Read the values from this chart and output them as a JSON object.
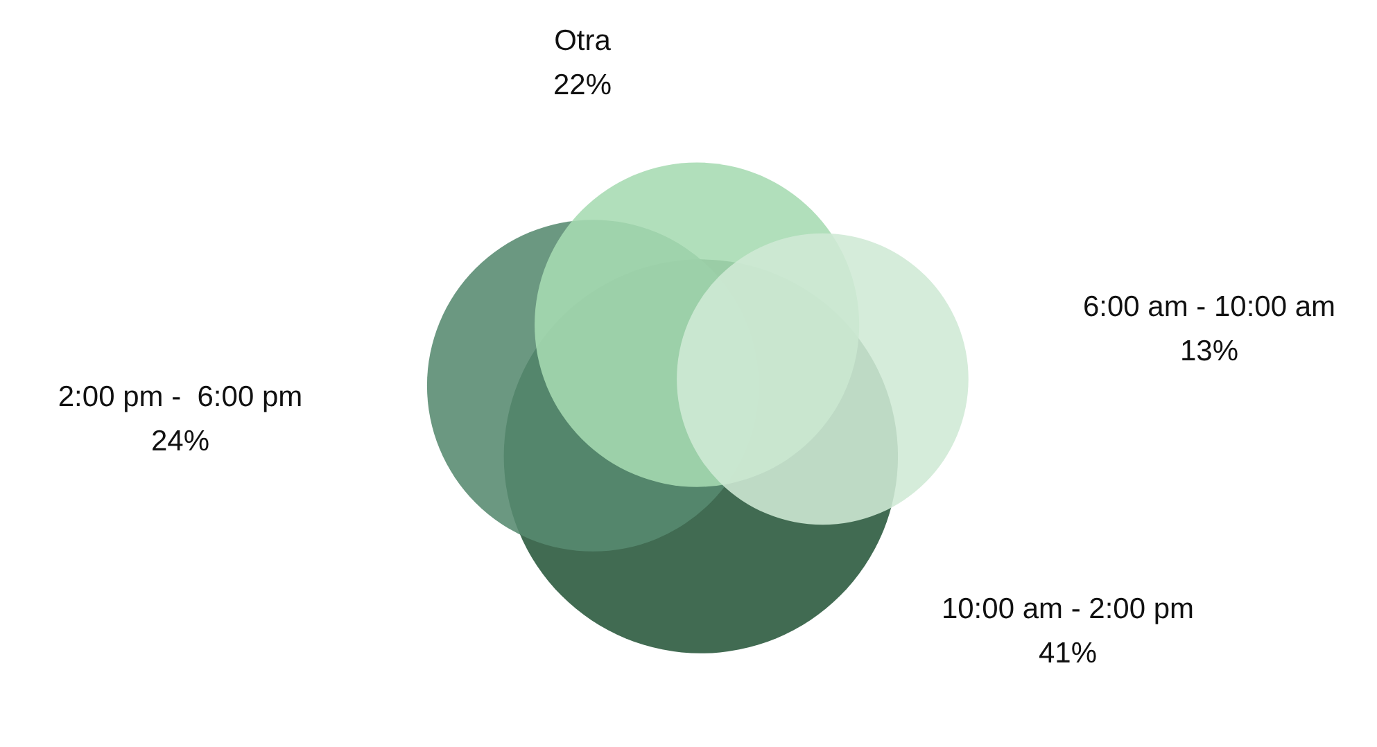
{
  "chart_data": {
    "type": "other",
    "categories": [
      "Otra",
      "6:00 am - 10:00 am",
      "10:00 am - 2:00 pm",
      "2:00 pm -  6:00 pm"
    ],
    "values": [
      22,
      13,
      41,
      24
    ],
    "colors": [
      "#a6dbb2",
      "#cfe9d5",
      "#27573a",
      "#568a6f"
    ],
    "value_labels": [
      "22%",
      "13%",
      "41%",
      "24%"
    ]
  }
}
